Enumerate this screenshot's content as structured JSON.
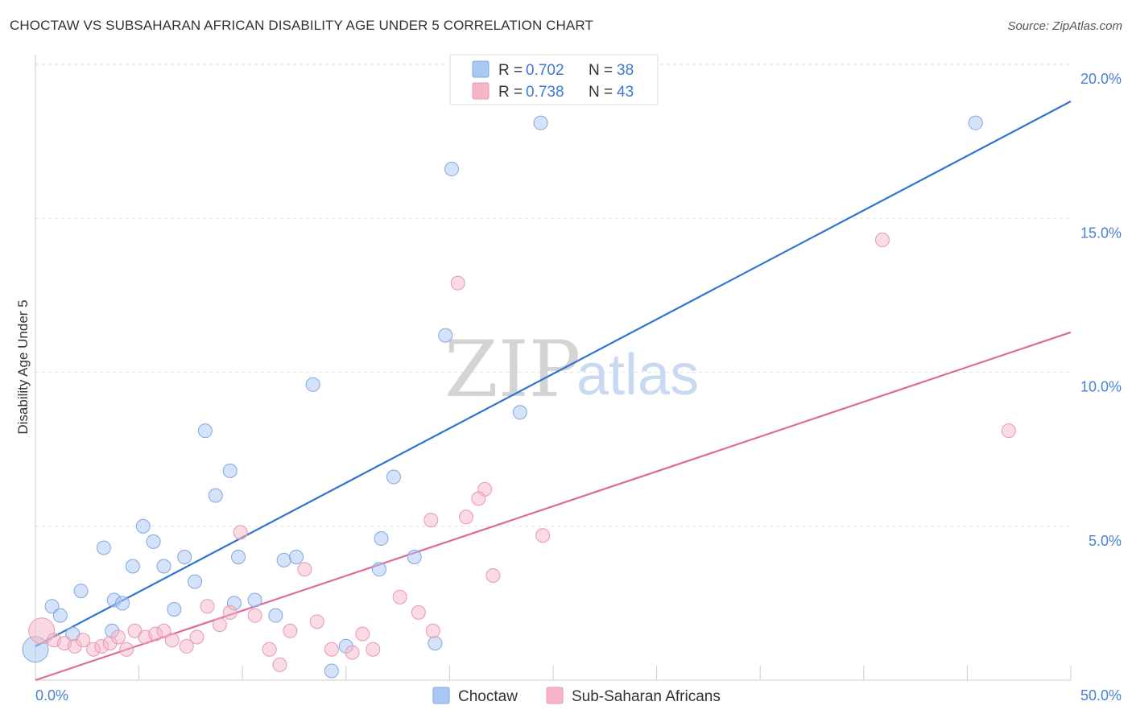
{
  "header": {
    "title": "CHOCTAW VS SUBSAHARAN AFRICAN DISABILITY AGE UNDER 5 CORRELATION CHART",
    "source": "Source: ZipAtlas.com"
  },
  "watermark": {
    "zip": "ZIP",
    "atlas": "atlas"
  },
  "legend_top": {
    "rows": [
      {
        "r_label": "R = ",
        "r_value": "0.702",
        "n_label": "N = ",
        "n_value": "38",
        "color": "#a9c8f3"
      },
      {
        "r_label": "R = ",
        "r_value": "0.738",
        "n_label": "N = ",
        "n_value": "43",
        "color": "#f6b6c8"
      }
    ]
  },
  "legend_bottom": {
    "items": [
      {
        "label": "Choctaw",
        "color": "#a9c8f3"
      },
      {
        "label": "Sub-Saharan Africans",
        "color": "#f6b6c8"
      }
    ]
  },
  "chart_data": {
    "type": "scatter",
    "title": "CHOCTAW VS SUBSAHARAN AFRICAN DISABILITY AGE UNDER 5 CORRELATION CHART",
    "xlabel": "",
    "ylabel": "Disability Age Under 5",
    "xlim": [
      0,
      50
    ],
    "ylim": [
      0,
      20
    ],
    "x_tick_labels": [
      {
        "value": 0,
        "label": "0.0%"
      },
      {
        "value": 50,
        "label": "50.0%"
      }
    ],
    "y_tick_labels": [
      {
        "value": 5,
        "label": "5.0%"
      },
      {
        "value": 10,
        "label": "10.0%"
      },
      {
        "value": 15,
        "label": "15.0%"
      },
      {
        "value": 20,
        "label": "20.0%"
      }
    ],
    "grid": true,
    "legend_position": "top-center",
    "series": [
      {
        "name": "Choctaw",
        "color": "#a9c8f3",
        "stroke": "#7fa8e0",
        "line_color": "#2f74d0",
        "trend": {
          "x": [
            0,
            50
          ],
          "y": [
            1.1,
            18.8
          ]
        },
        "points": [
          [
            0,
            1.0,
            "large"
          ],
          [
            0.8,
            2.4
          ],
          [
            1.2,
            2.1
          ],
          [
            1.8,
            1.5
          ],
          [
            2.2,
            2.9
          ],
          [
            3.7,
            1.6
          ],
          [
            3.3,
            4.3
          ],
          [
            3.8,
            2.6
          ],
          [
            4.2,
            2.5
          ],
          [
            4.7,
            3.7
          ],
          [
            5.2,
            5.0
          ],
          [
            5.7,
            4.5
          ],
          [
            6.2,
            3.7
          ],
          [
            6.7,
            2.3
          ],
          [
            7.2,
            4.0
          ],
          [
            7.7,
            3.2
          ],
          [
            8.2,
            8.1
          ],
          [
            8.7,
            6.0
          ],
          [
            9.4,
            6.8
          ],
          [
            9.6,
            2.5
          ],
          [
            9.8,
            4.0
          ],
          [
            10.6,
            2.6
          ],
          [
            11.6,
            2.1
          ],
          [
            12.0,
            3.9
          ],
          [
            12.6,
            4.0
          ],
          [
            13.4,
            9.6
          ],
          [
            14.3,
            0.3
          ],
          [
            15.0,
            1.1
          ],
          [
            16.6,
            3.6
          ],
          [
            16.7,
            4.6
          ],
          [
            17.3,
            6.6
          ],
          [
            18.3,
            4.0
          ],
          [
            19.3,
            1.2
          ],
          [
            19.8,
            11.2
          ],
          [
            20.1,
            16.6
          ],
          [
            23.4,
            8.7
          ],
          [
            24.4,
            18.1
          ],
          [
            45.4,
            18.1
          ]
        ]
      },
      {
        "name": "Sub-Saharan Africans",
        "color": "#f6b6c8",
        "stroke": "#e898b0",
        "line_color": "#e0699a",
        "trend": {
          "x": [
            0,
            50
          ],
          "y": [
            0.0,
            11.3
          ]
        },
        "points": [
          [
            0.3,
            1.6,
            "large"
          ],
          [
            0.9,
            1.3
          ],
          [
            1.4,
            1.2
          ],
          [
            1.9,
            1.1
          ],
          [
            2.3,
            1.3
          ],
          [
            2.8,
            1.0
          ],
          [
            3.2,
            1.1
          ],
          [
            3.6,
            1.2
          ],
          [
            4.0,
            1.4
          ],
          [
            4.4,
            1.0
          ],
          [
            4.8,
            1.6
          ],
          [
            5.3,
            1.4
          ],
          [
            5.8,
            1.5
          ],
          [
            6.2,
            1.6
          ],
          [
            6.6,
            1.3
          ],
          [
            7.3,
            1.1
          ],
          [
            7.8,
            1.4
          ],
          [
            8.3,
            2.4
          ],
          [
            8.9,
            1.8
          ],
          [
            9.4,
            2.2
          ],
          [
            9.9,
            4.8
          ],
          [
            10.6,
            2.1
          ],
          [
            11.3,
            1.0
          ],
          [
            11.8,
            0.5
          ],
          [
            12.3,
            1.6
          ],
          [
            13.0,
            3.6
          ],
          [
            13.6,
            1.9
          ],
          [
            14.3,
            1.0
          ],
          [
            15.3,
            0.9
          ],
          [
            15.8,
            1.5
          ],
          [
            16.3,
            1.0
          ],
          [
            17.6,
            2.7
          ],
          [
            18.5,
            2.2
          ],
          [
            19.2,
            1.6
          ],
          [
            19.1,
            5.2
          ],
          [
            20.4,
            12.9
          ],
          [
            20.8,
            5.3
          ],
          [
            21.7,
            6.2
          ],
          [
            21.4,
            5.9
          ],
          [
            22.1,
            3.4
          ],
          [
            24.5,
            4.7
          ],
          [
            40.9,
            14.3
          ],
          [
            47.0,
            8.1
          ]
        ]
      }
    ]
  }
}
